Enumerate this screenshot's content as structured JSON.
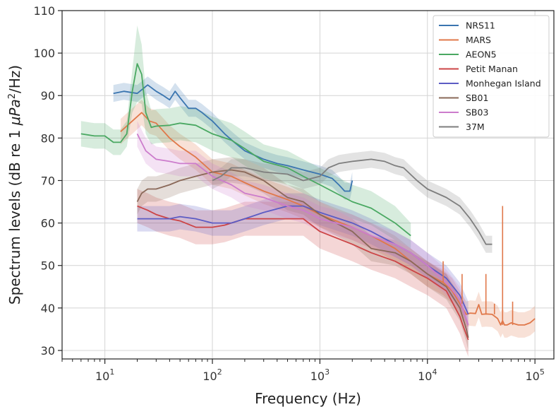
{
  "chart_data": {
    "type": "line",
    "title": "",
    "xlabel": "Frequency (Hz)",
    "ylabel_parts": [
      "Spectrum levels (dB re 1 ",
      "μPa",
      "2",
      "/Hz)"
    ],
    "xscale": "log",
    "xlim": [
      4,
      150000
    ],
    "ylim": [
      28,
      110
    ],
    "x_ticks": [
      {
        "value": 10,
        "base": "10",
        "exp": "1"
      },
      {
        "value": 100,
        "base": "10",
        "exp": "2"
      },
      {
        "value": 1000,
        "base": "10",
        "exp": "3"
      },
      {
        "value": 10000,
        "base": "10",
        "exp": "4"
      },
      {
        "value": 100000,
        "base": "10",
        "exp": "5"
      }
    ],
    "y_ticks": [
      30,
      40,
      50,
      60,
      70,
      80,
      90,
      100,
      110
    ],
    "grid": true,
    "legend_position": "top-right",
    "series": [
      {
        "name": "NRS11",
        "color": "#3a75b0",
        "points": [
          [
            12,
            90.5
          ],
          [
            15,
            91
          ],
          [
            20,
            90.5
          ],
          [
            25,
            92.5
          ],
          [
            30,
            91
          ],
          [
            35,
            90
          ],
          [
            40,
            89
          ],
          [
            45,
            91
          ],
          [
            50,
            89.5
          ],
          [
            60,
            87
          ],
          [
            70,
            87
          ],
          [
            80,
            86
          ],
          [
            100,
            84
          ],
          [
            130,
            81
          ],
          [
            160,
            79
          ],
          [
            200,
            77
          ],
          [
            300,
            75
          ],
          [
            400,
            74
          ],
          [
            500,
            73.5
          ],
          [
            700,
            72.5
          ],
          [
            1000,
            71.5
          ],
          [
            1300,
            70.5
          ],
          [
            1500,
            69
          ],
          [
            1700,
            67.5
          ],
          [
            1900,
            67.5
          ],
          [
            2000,
            70
          ]
        ],
        "band": [
          2,
          2,
          2,
          2,
          2,
          2,
          2,
          2,
          2,
          2,
          2,
          2,
          2,
          2,
          2,
          2,
          2,
          2,
          2,
          2,
          2,
          2,
          2,
          2,
          2,
          2
        ]
      },
      {
        "name": "MARS",
        "color": "#e0784a",
        "points": [
          [
            14,
            81.5
          ],
          [
            18,
            84
          ],
          [
            22,
            86
          ],
          [
            26,
            84
          ],
          [
            30,
            83.5
          ],
          [
            40,
            80
          ],
          [
            50,
            78
          ],
          [
            70,
            75.5
          ],
          [
            100,
            72
          ],
          [
            150,
            71
          ],
          [
            200,
            69.5
          ],
          [
            300,
            67.5
          ],
          [
            500,
            65.5
          ],
          [
            700,
            64
          ],
          [
            1000,
            62
          ],
          [
            2000,
            59
          ],
          [
            3000,
            57
          ],
          [
            5000,
            54
          ],
          [
            7000,
            51
          ],
          [
            10000,
            48
          ],
          [
            14000,
            46
          ],
          [
            17000,
            44
          ],
          [
            20000,
            41
          ],
          [
            23000,
            38.5
          ],
          [
            25000,
            38.8
          ],
          [
            28000,
            38.7
          ],
          [
            30000,
            40.8
          ],
          [
            32000,
            38.5
          ],
          [
            35000,
            38.6
          ],
          [
            40000,
            38.5
          ],
          [
            45000,
            37.5
          ],
          [
            48000,
            36
          ],
          [
            50000,
            37
          ],
          [
            52000,
            36
          ],
          [
            55000,
            36
          ],
          [
            60000,
            36.5
          ],
          [
            70000,
            36
          ],
          [
            80000,
            36
          ],
          [
            90000,
            36.5
          ],
          [
            100000,
            37.5
          ]
        ],
        "band": [
          3,
          3,
          3,
          3,
          3,
          3,
          3,
          3,
          3,
          3,
          3,
          3,
          3,
          3,
          3,
          3,
          3,
          3,
          3,
          3,
          3,
          3,
          3,
          3,
          3,
          3,
          3,
          3,
          3,
          3,
          3,
          3,
          3,
          3,
          3,
          3,
          3,
          3,
          3,
          3
        ]
      },
      {
        "name": "AEON5",
        "color": "#4aa862",
        "points": [
          [
            6,
            81
          ],
          [
            8,
            80.5
          ],
          [
            10,
            80.5
          ],
          [
            12,
            79
          ],
          [
            14,
            79
          ],
          [
            16,
            81
          ],
          [
            18,
            91
          ],
          [
            20,
            97.5
          ],
          [
            22,
            95
          ],
          [
            24,
            86
          ],
          [
            27,
            82.5
          ],
          [
            30,
            82.8
          ],
          [
            40,
            83
          ],
          [
            50,
            83.5
          ],
          [
            70,
            83
          ],
          [
            100,
            81
          ],
          [
            150,
            79.5
          ],
          [
            200,
            77.5
          ],
          [
            300,
            74.5
          ],
          [
            500,
            73
          ],
          [
            700,
            71
          ],
          [
            1000,
            69
          ],
          [
            2000,
            65
          ],
          [
            3000,
            63.5
          ],
          [
            5000,
            60
          ],
          [
            7000,
            57
          ]
        ],
        "band": [
          3,
          3,
          3,
          3,
          3,
          3,
          5,
          9,
          7,
          5,
          4,
          4,
          4,
          4,
          4,
          4,
          4,
          4,
          4,
          4,
          4,
          4,
          4,
          4,
          4,
          3
        ]
      },
      {
        "name": "Petit Manan",
        "color": "#cc4446",
        "points": [
          [
            20,
            64
          ],
          [
            25,
            63
          ],
          [
            30,
            62
          ],
          [
            40,
            61
          ],
          [
            50,
            60.5
          ],
          [
            70,
            59
          ],
          [
            100,
            59
          ],
          [
            130,
            59.5
          ],
          [
            200,
            61
          ],
          [
            300,
            61
          ],
          [
            500,
            61
          ],
          [
            700,
            61
          ],
          [
            1000,
            58
          ],
          [
            2000,
            55
          ],
          [
            3000,
            53
          ],
          [
            5000,
            51
          ],
          [
            7000,
            49
          ],
          [
            10000,
            47
          ],
          [
            15000,
            44
          ],
          [
            20000,
            38
          ],
          [
            22000,
            35
          ],
          [
            24000,
            32.5
          ]
        ],
        "band": [
          4,
          4,
          4,
          4,
          4,
          4,
          4,
          4,
          4,
          4,
          4,
          4,
          4,
          4,
          4,
          4,
          4,
          4,
          4,
          4,
          4,
          4
        ]
      },
      {
        "name": "Monhegan Island",
        "color": "#5c5cc4",
        "points": [
          [
            20,
            61
          ],
          [
            30,
            61
          ],
          [
            40,
            61
          ],
          [
            50,
            61.5
          ],
          [
            70,
            61
          ],
          [
            100,
            60
          ],
          [
            150,
            60
          ],
          [
            200,
            61
          ],
          [
            300,
            62.5
          ],
          [
            500,
            64
          ],
          [
            700,
            64
          ],
          [
            1000,
            62.5
          ],
          [
            2000,
            60
          ],
          [
            3000,
            58
          ],
          [
            5000,
            55
          ],
          [
            7000,
            53
          ],
          [
            10000,
            50
          ],
          [
            15000,
            47
          ],
          [
            20000,
            43
          ],
          [
            24000,
            38.5
          ]
        ],
        "band": [
          3,
          3,
          3,
          3,
          3,
          3,
          3,
          3,
          3,
          3,
          3,
          3,
          3,
          3,
          3,
          3,
          3,
          3,
          3,
          3
        ]
      },
      {
        "name": "SB01",
        "color": "#8a6858",
        "points": [
          [
            20,
            65
          ],
          [
            22,
            67
          ],
          [
            25,
            68
          ],
          [
            30,
            68
          ],
          [
            40,
            69
          ],
          [
            50,
            70
          ],
          [
            70,
            71
          ],
          [
            100,
            72
          ],
          [
            150,
            72.5
          ],
          [
            200,
            72
          ],
          [
            300,
            70
          ],
          [
            500,
            66
          ],
          [
            700,
            65
          ],
          [
            1000,
            62
          ],
          [
            2000,
            58
          ],
          [
            3000,
            54
          ],
          [
            5000,
            53
          ],
          [
            7000,
            51
          ],
          [
            10000,
            48
          ],
          [
            15000,
            45
          ],
          [
            20000,
            40
          ],
          [
            23000,
            35
          ],
          [
            24000,
            33
          ]
        ],
        "band": [
          3,
          3,
          3,
          3,
          3,
          3,
          3,
          3,
          3,
          3,
          3,
          3,
          3,
          3,
          3,
          3,
          3,
          3,
          3,
          3,
          3,
          3,
          3
        ]
      },
      {
        "name": "SB03",
        "color": "#cc7ccc",
        "points": [
          [
            20,
            81
          ],
          [
            24,
            77
          ],
          [
            30,
            75
          ],
          [
            40,
            74.5
          ],
          [
            50,
            74
          ],
          [
            70,
            74
          ],
          [
            100,
            71
          ],
          [
            150,
            69
          ],
          [
            200,
            67
          ],
          [
            300,
            66
          ],
          [
            500,
            64
          ],
          [
            700,
            63
          ],
          [
            1000,
            61
          ],
          [
            2000,
            59
          ],
          [
            3000,
            57
          ],
          [
            5000,
            55
          ],
          [
            7000,
            53
          ],
          [
            10000,
            50
          ],
          [
            15000,
            46
          ],
          [
            20000,
            42
          ],
          [
            24000,
            36
          ]
        ],
        "band": [
          3,
          3,
          3,
          3,
          3,
          3,
          3,
          3,
          3,
          3,
          3,
          3,
          3,
          3,
          3,
          3,
          3,
          3,
          3,
          3,
          3
        ]
      },
      {
        "name": "37M",
        "color": "#7e7e7e",
        "points": [
          [
            100,
            70
          ],
          [
            120,
            71
          ],
          [
            150,
            73
          ],
          [
            200,
            73
          ],
          [
            300,
            72
          ],
          [
            500,
            71.5
          ],
          [
            700,
            70
          ],
          [
            1000,
            71
          ],
          [
            1200,
            73
          ],
          [
            1500,
            74
          ],
          [
            2000,
            74.5
          ],
          [
            3000,
            75
          ],
          [
            4000,
            74.5
          ],
          [
            5000,
            73.5
          ],
          [
            6000,
            73
          ],
          [
            8000,
            70
          ],
          [
            10000,
            68
          ],
          [
            15000,
            66
          ],
          [
            20000,
            64
          ],
          [
            25000,
            61
          ],
          [
            30000,
            58
          ],
          [
            35000,
            55
          ],
          [
            40000,
            55
          ]
        ],
        "band": [
          2,
          2,
          2,
          2,
          2,
          2,
          2,
          2,
          2,
          2,
          2,
          2,
          2,
          2,
          2,
          2,
          2,
          2,
          2,
          2,
          2,
          2,
          2
        ]
      }
    ],
    "spikes": [
      {
        "series": "MARS",
        "x": 14000,
        "y_bottom": 46,
        "y_top": 51
      },
      {
        "series": "MARS",
        "x": 21000,
        "y_bottom": 41,
        "y_top": 48
      },
      {
        "series": "MARS",
        "x": 35000,
        "y_bottom": 38.5,
        "y_top": 48
      },
      {
        "series": "MARS",
        "x": 42000,
        "y_bottom": 38.5,
        "y_top": 41
      },
      {
        "series": "MARS",
        "x": 50000,
        "y_bottom": 36,
        "y_top": 64
      },
      {
        "series": "MARS",
        "x": 62000,
        "y_bottom": 36,
        "y_top": 41.5
      }
    ]
  }
}
